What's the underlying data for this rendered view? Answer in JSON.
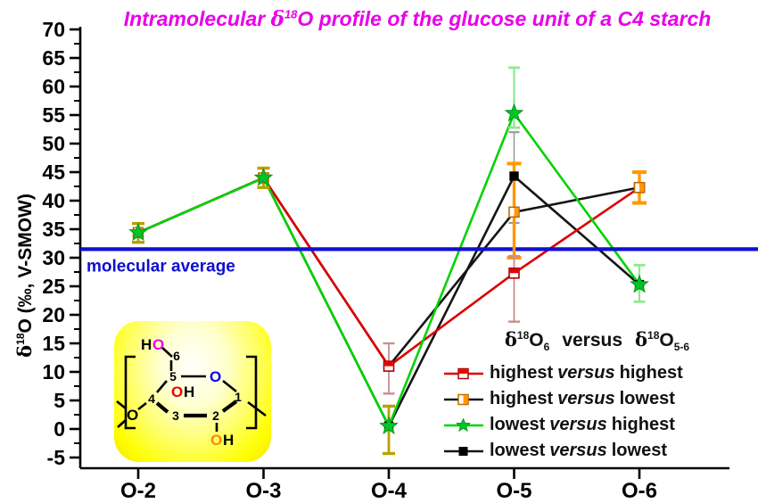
{
  "title": {
    "pre": "Intramolecular ",
    "delta": "δ",
    "sup": "18",
    "post": "O profile of the glucose unit of a C4 starch",
    "color": "#E800E8"
  },
  "y_axis": {
    "delta": "δ",
    "sup": "18",
    "rest": "O (‰, V-SMOW)",
    "ticks": [
      70,
      65,
      60,
      55,
      50,
      45,
      40,
      35,
      30,
      25,
      20,
      15,
      10,
      5,
      0,
      -5
    ]
  },
  "x_axis": {
    "categories": [
      "O-2",
      "O-3",
      "O-4",
      "O-5",
      "O-6"
    ]
  },
  "average_line": {
    "label": "molecular average",
    "value": 31.5,
    "color": "#0F0FD0"
  },
  "legend": {
    "title": {
      "d1": "δ",
      "s1": "18",
      "o1": "O",
      "sub1": "6",
      "versus": "versus",
      "d2": "δ",
      "s2": "18",
      "o2": "O",
      "sub2": "5-6"
    },
    "items": [
      {
        "pre": "highest",
        "vs": "versus",
        "post": "highest",
        "line": "#DD0000",
        "marker": "red_half"
      },
      {
        "pre": "highest",
        "vs": "versus",
        "post": "lowest",
        "line": "#151515",
        "marker": "orange_half"
      },
      {
        "pre": "lowest",
        "vs": "versus",
        "post": "highest",
        "line": "#00D400",
        "marker": "green_star"
      },
      {
        "pre": "lowest",
        "vs": "versus",
        "post": "lowest",
        "line": "#151515",
        "marker": "black_square"
      }
    ]
  },
  "chart_data": {
    "type": "line",
    "title": "Intramolecular δ18O profile of the glucose unit of a C4 starch",
    "ylabel": "δ18O (‰, V-SMOW)",
    "ylim": [
      -5,
      70
    ],
    "y_tick_step": 5,
    "grid": false,
    "legend_position": "lower right",
    "categories": [
      "O-2",
      "O-3",
      "O-4",
      "O-5",
      "O-6"
    ],
    "average_line_value": 31.5,
    "series": [
      {
        "name": "highest versus highest",
        "line_color": "#DD0000",
        "marker": "red_half",
        "z": 2,
        "values": [
          34.4,
          44.0,
          11.0,
          27.3,
          42.3
        ]
      },
      {
        "name": "highest versus lowest",
        "line_color": "#151515",
        "marker": "orange_half",
        "z": 0,
        "values": [
          34.4,
          44.0,
          11.0,
          38.0,
          42.3
        ]
      },
      {
        "name": "lowest versus highest",
        "line_color": "#00D400",
        "marker": "green_star",
        "z": 3,
        "values": [
          34.4,
          44.0,
          0.5,
          55.3,
          25.3
        ]
      },
      {
        "name": "lowest versus lowest",
        "line_color": "#151515",
        "marker": "black_square",
        "z": 1,
        "values": [
          34.4,
          44.0,
          0.5,
          44.3,
          25.3
        ]
      }
    ],
    "points": [
      {
        "x": "O-2",
        "xi": 0,
        "y": 34.4,
        "symbols": [
          "orange_half",
          "green_star"
        ],
        "err_plus": 1.6,
        "err_minus": 1.7,
        "err_color": "darkyellow"
      },
      {
        "x": "O-3",
        "xi": 1,
        "y": 44.0,
        "symbols": [
          "orange_half",
          "green_star"
        ],
        "err_plus": 1.7,
        "err_minus": 1.7,
        "err_color": "darkyellow"
      },
      {
        "x": "O-4",
        "xi": 2,
        "y": 11.0,
        "symbols": [
          "red_half"
        ],
        "err_plus": 4.0,
        "err_minus": 4.8,
        "err_color": "pink"
      },
      {
        "x": "O-4",
        "xi": 2,
        "y": 0.5,
        "symbols": [
          "black_square",
          "green_star"
        ],
        "err_plus": 3.5,
        "err_minus": 4.8,
        "err_color": "darkyellow"
      },
      {
        "x": "O-5",
        "xi": 3,
        "y": 55.3,
        "symbols": [
          "green_star"
        ],
        "err_plus": 8.0,
        "err_minus": 2.5,
        "err_color": "lightgreen"
      },
      {
        "x": "O-5",
        "xi": 3,
        "y": 44.3,
        "symbols": [
          "black_square"
        ],
        "err_plus": 7.7,
        "err_minus": 8.2,
        "err_color": "gray"
      },
      {
        "x": "O-5",
        "xi": 3,
        "y": 38.0,
        "symbols": [
          "orange_half"
        ],
        "err_plus": 8.5,
        "err_minus": 8.0,
        "err_color": "orange"
      },
      {
        "x": "O-5",
        "xi": 3,
        "y": 27.3,
        "symbols": [
          "red_half"
        ],
        "err_plus": 3.0,
        "err_minus": 8.5,
        "err_color": "pink"
      },
      {
        "x": "O-6",
        "xi": 4,
        "y": 42.3,
        "symbols": [
          "red_half",
          "orange_half"
        ],
        "err_plus": 2.7,
        "err_minus": 2.7,
        "err_color": "orange"
      },
      {
        "x": "O-6",
        "xi": 4,
        "y": 25.3,
        "symbols": [
          "black_square",
          "green_star"
        ],
        "err_plus": 3.4,
        "err_minus": 3.0,
        "err_color": "lightgreen"
      }
    ]
  },
  "inset": {
    "ho_top": {
      "h": "H",
      "o": "O",
      "o_color": "#EE00EE"
    },
    "ring_o": {
      "o": "O",
      "color": "#0000EE"
    },
    "oh_mid": {
      "o": "O",
      "h": "H",
      "o_color": "#EE0000"
    },
    "oh_bottom": {
      "o": "O",
      "h": "H",
      "o_color": "#FF8800"
    },
    "glycosidic_o": {
      "o": "O",
      "color": "#000000"
    },
    "carbons": [
      "1",
      "2",
      "3",
      "4",
      "5",
      "6"
    ]
  },
  "colors": {
    "title": "#E800E8",
    "red_series": "#DD0000",
    "orange_marker": "#FF9800",
    "green_series": "#00D400",
    "black_series": "#151515",
    "average_blue": "#0F0FD0",
    "err_darkyellow": "#B8A000",
    "err_pink": "#C98F8F",
    "err_lightgreen": "#90E890",
    "err_orange": "#FF9800",
    "err_gray": "#9A9A9A"
  }
}
